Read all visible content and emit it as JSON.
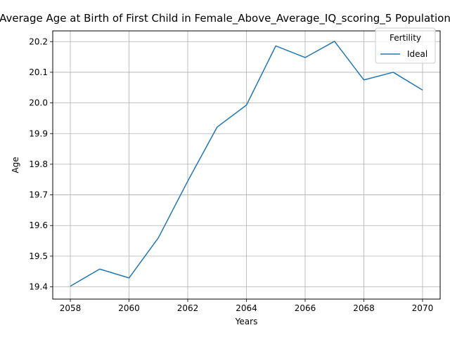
{
  "chart_data": {
    "type": "line",
    "title": "Average Age at Birth of First Child in Female_Above_Average_IQ_scoring_5 Population",
    "xlabel": "Years",
    "ylabel": "Age",
    "xlim": [
      2057.4,
      2070.6
    ],
    "ylim": [
      19.36,
      20.235
    ],
    "xticks": [
      2058,
      2060,
      2062,
      2064,
      2066,
      2068,
      2070
    ],
    "yticks": [
      19.4,
      19.5,
      19.6,
      19.7,
      19.8,
      19.9,
      20.0,
      20.1,
      20.2
    ],
    "grid": true,
    "legend": {
      "title": "Fertility",
      "placement": "top-right"
    },
    "x": [
      2058,
      2059,
      2060,
      2061,
      2062,
      2063,
      2064,
      2065,
      2066,
      2067,
      2068,
      2069,
      2070
    ],
    "series": [
      {
        "name": "Ideal",
        "color": "#1f77b4",
        "values": [
          19.402,
          19.458,
          19.429,
          19.56,
          19.745,
          19.921,
          19.993,
          20.186,
          20.148,
          20.201,
          20.075,
          20.1,
          20.042
        ]
      }
    ]
  }
}
